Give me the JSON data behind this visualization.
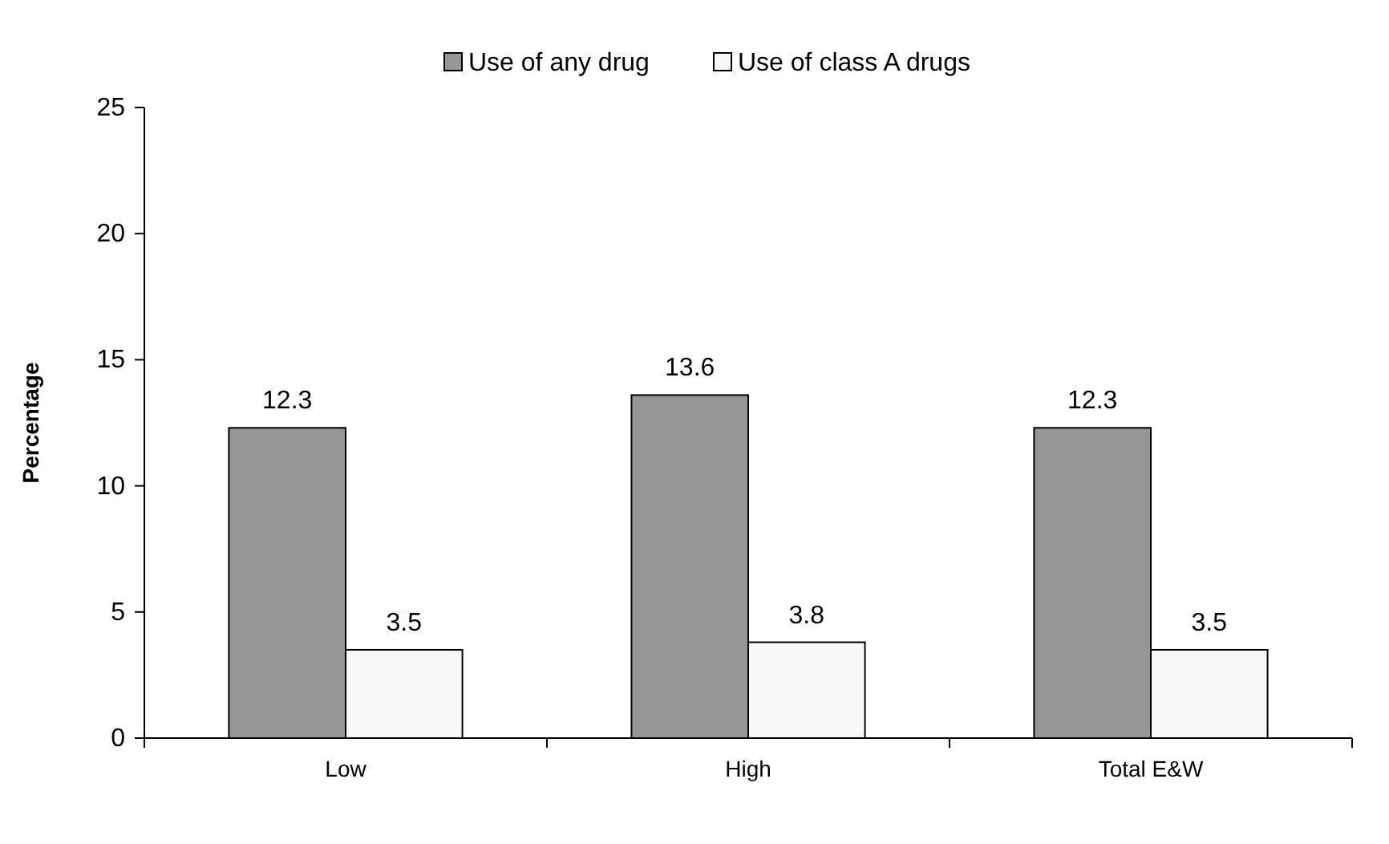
{
  "chart_data": {
    "type": "bar",
    "ylabel": "Percentage",
    "categories": [
      "Low",
      "High",
      "Total E&W"
    ],
    "series": [
      {
        "name": "Use of any drug",
        "color": "#969696",
        "values": [
          12.3,
          13.6,
          12.3
        ]
      },
      {
        "name": "Use of class A drugs",
        "color": "#f8f8f8",
        "values": [
          3.5,
          3.8,
          3.5
        ]
      }
    ],
    "ylim": [
      0,
      25
    ],
    "yticks": [
      0,
      5,
      10,
      15,
      20,
      25
    ],
    "data_labels": true,
    "grid": false,
    "legend": "top"
  }
}
